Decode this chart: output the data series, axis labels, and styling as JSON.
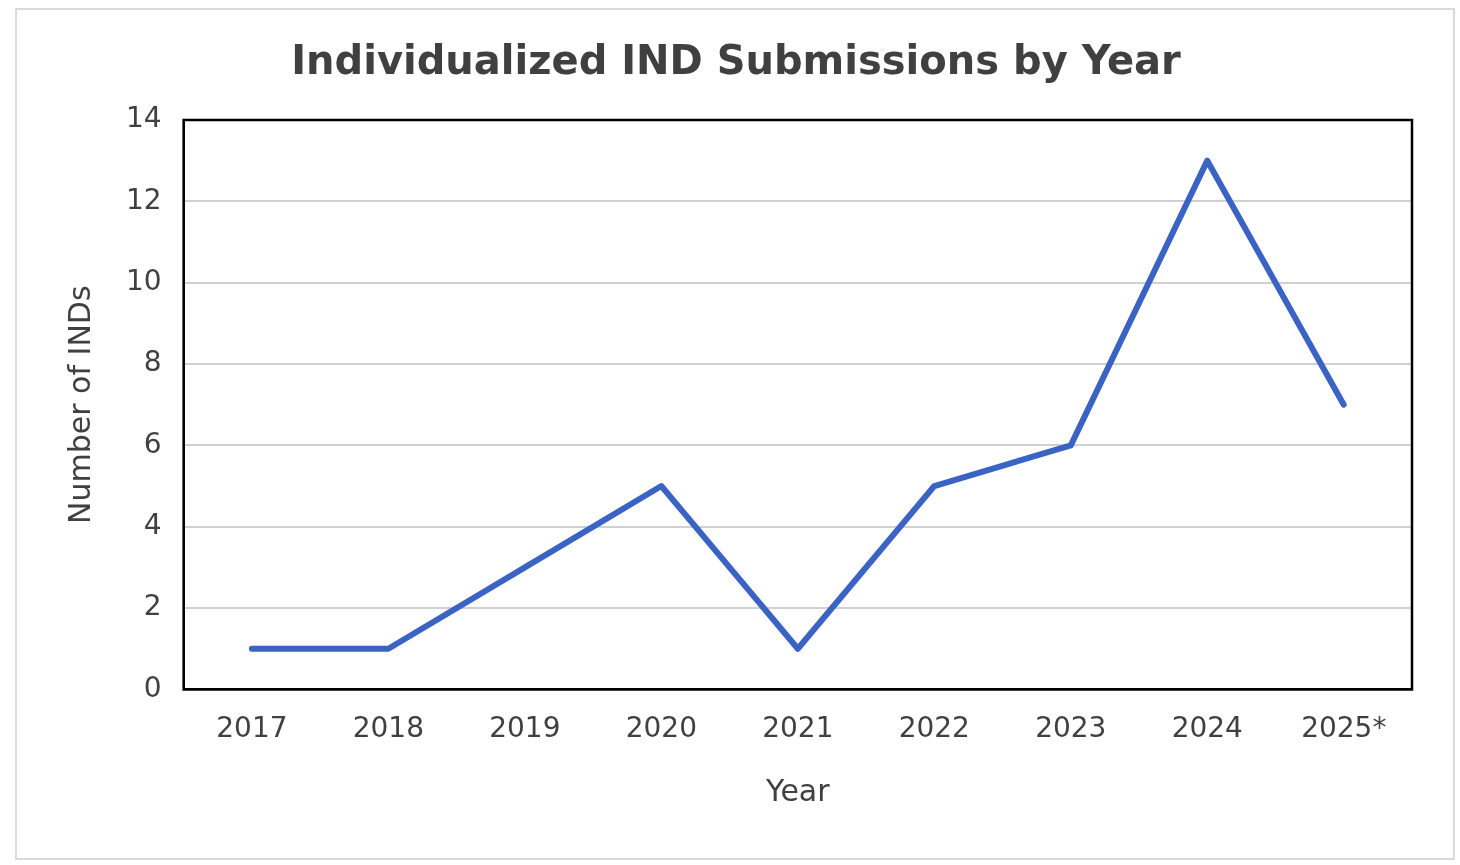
{
  "chart_data": {
    "type": "line",
    "title": "Individualized IND Submissions by Year",
    "xlabel": "Year",
    "ylabel": "Number of INDs",
    "categories": [
      "2017",
      "2018",
      "2019",
      "2020",
      "2021",
      "2022",
      "2023",
      "2024",
      "2025*"
    ],
    "series": [
      {
        "color": "#3b63c4",
        "values": [
          1,
          1,
          3,
          5,
          1,
          5,
          6,
          13,
          7
        ]
      }
    ],
    "ylim": [
      0,
      14
    ],
    "yticks": [
      0,
      2,
      4,
      6,
      8,
      10,
      12,
      14
    ],
    "grid": "y",
    "legend": false,
    "marker": "none",
    "line_style": "solid"
  }
}
